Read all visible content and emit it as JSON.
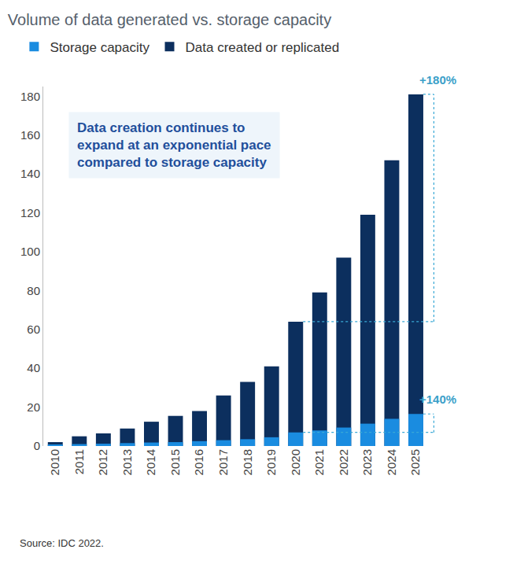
{
  "chart_data": {
    "type": "bar",
    "title": "Volume of data generated vs. storage capacity",
    "categories": [
      "2010",
      "2011",
      "2012",
      "2013",
      "2014",
      "2015",
      "2016",
      "2017",
      "2018",
      "2019",
      "2020",
      "2021",
      "2022",
      "2023",
      "2024",
      "2025"
    ],
    "series": [
      {
        "name": "Storage capacity",
        "color": "#1a8ce0",
        "values": [
          0.8,
          1.0,
          1.2,
          1.5,
          1.8,
          2.0,
          2.5,
          3.0,
          3.5,
          4.5,
          7.0,
          8.0,
          9.5,
          11.5,
          14.0,
          16.5
        ]
      },
      {
        "name": "Data created or replicated",
        "color": "#0c2f5e",
        "values": [
          2,
          5,
          6.5,
          9,
          12.5,
          15.5,
          18,
          26,
          33,
          41,
          64,
          79,
          97,
          119,
          147,
          181
        ]
      }
    ],
    "stacked": false,
    "ylim": [
      0,
      185
    ],
    "yticks": [
      0,
      20,
      40,
      60,
      80,
      100,
      120,
      140,
      160,
      180
    ],
    "grid": false,
    "legend": "top-left",
    "data_labels": false,
    "annotations": [
      {
        "text": "Data creation continues to\nexpand at an exponential pace\ncompared to storage capacity"
      },
      {
        "text": "+180%",
        "series": "Data created or replicated",
        "from": "2020",
        "to": "2025"
      },
      {
        "text": "+140%",
        "series": "Storage capacity",
        "from": "2020",
        "to": "2025"
      }
    ],
    "source": "Source: IDC 2022."
  }
}
